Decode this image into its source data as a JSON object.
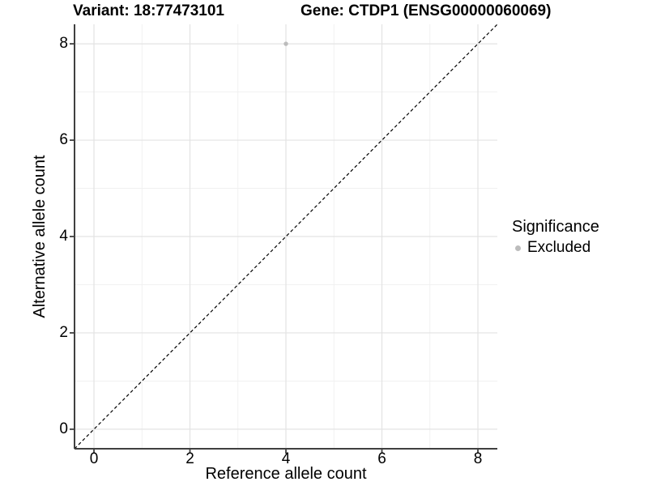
{
  "chart_data": {
    "type": "scatter",
    "title_left": "Variant: 18:77473101",
    "title_right": "Gene: CTDP1 (ENSG00000060069)",
    "xlabel": "Reference allele count",
    "ylabel": "Alternative allele count",
    "xlim": [
      -0.405,
      8.405
    ],
    "ylim": [
      -0.405,
      8.405
    ],
    "xticks": [
      0,
      2,
      4,
      6,
      8
    ],
    "yticks": [
      0,
      2,
      4,
      6,
      8
    ],
    "minor_ticks": [
      1,
      3,
      5,
      7
    ],
    "grid": {
      "major_color": "#e3e3e3",
      "minor_color": "#efefef",
      "background": "#ffffff"
    },
    "axis_color": "#3f3f3f",
    "identity_line": {
      "from": "bottom-left",
      "to": "top-right",
      "color": "#000000",
      "style": "dashed"
    },
    "points": [
      {
        "x": 4,
        "y": 8,
        "significance": "Excluded",
        "color": "#bcbcbc"
      }
    ],
    "legend": {
      "position": "right",
      "title": "Significance",
      "items": [
        {
          "label": "Excluded",
          "color": "#bcbcbc",
          "marker": "circle"
        }
      ]
    }
  }
}
